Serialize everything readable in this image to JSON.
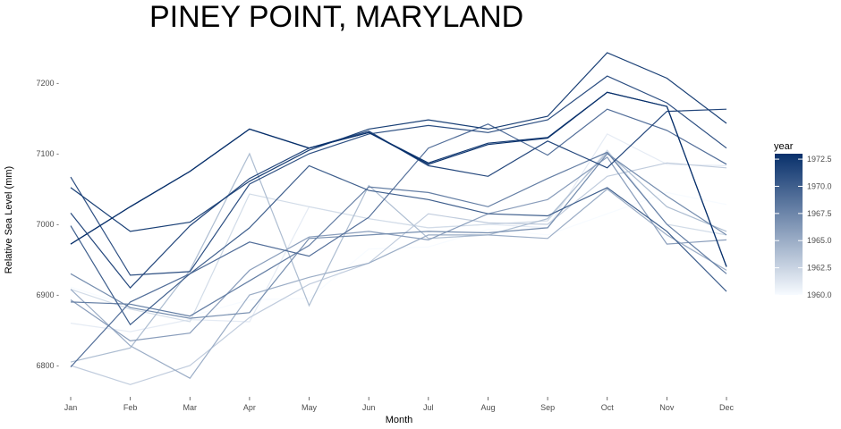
{
  "chart_data": {
    "type": "line",
    "title": "PINEY POINT, MARYLAND",
    "xlabel": "Month",
    "ylabel": "Relative Sea Level (mm)",
    "categories": [
      "Jan",
      "Feb",
      "Mar",
      "Apr",
      "May",
      "Jun",
      "Jul",
      "Aug",
      "Sep",
      "Oct",
      "Nov",
      "Dec"
    ],
    "ylim": [
      6750,
      7250
    ],
    "yticks": [
      6800,
      6900,
      7000,
      7100,
      7200
    ],
    "ytick_labels": [
      "6800 -",
      "6900 -",
      "7000 -",
      "7100 -",
      "7200 -"
    ],
    "grid": false,
    "legend": {
      "title": "year",
      "placement": "right",
      "range": [
        1960,
        1973
      ],
      "ticks": [
        1960,
        1962.5,
        1965,
        1967.5,
        1970,
        1972.5
      ],
      "tick_labels": [
        "1960.0",
        "1962.5",
        "1965.0",
        "1967.5",
        "1970.0",
        "1972.5"
      ],
      "color_low": "#f7fbff",
      "color_high": "#08306b"
    },
    "series": [
      {
        "year": 1960,
        "values": [
          6911,
          6885,
          6870,
          6893,
          6895,
          6965,
          6968,
          6993,
          6985,
          7015,
          7045,
          7028
        ]
      },
      {
        "year": 1961,
        "values": [
          6860,
          6848,
          6865,
          6862,
          7025,
          7008,
          6995,
          7000,
          6995,
          7128,
          7085,
          7083
        ]
      },
      {
        "year": 1962,
        "values": [
          6908,
          6880,
          6862,
          7043,
          7025,
          7008,
          6995,
          7000,
          7005,
          7105,
          7000,
          6985
        ]
      },
      {
        "year": 1963,
        "values": [
          6800,
          6773,
          6800,
          6868,
          6915,
          6945,
          7015,
          7002,
          7000,
          7068,
          7087,
          7080
        ]
      },
      {
        "year": 1964,
        "values": [
          6805,
          6825,
          6935,
          7100,
          6885,
          7055,
          6980,
          6985,
          7008,
          7102,
          7025,
          6990
        ]
      },
      {
        "year": 1965,
        "values": [
          6908,
          6828,
          6782,
          6900,
          6925,
          6945,
          6985,
          6985,
          6980,
          7050,
          6985,
          6935
        ]
      },
      {
        "year": 1966,
        "values": [
          6893,
          6835,
          6846,
          6935,
          6982,
          6990,
          6978,
          7015,
          7035,
          7095,
          6972,
          6978
        ]
      },
      {
        "year": 1967,
        "values": [
          6930,
          6882,
          6867,
          6875,
          6980,
          6985,
          6990,
          6988,
          6995,
          7100,
          7040,
          6985
        ]
      },
      {
        "year": 1968,
        "values": [
          6890,
          6887,
          6870,
          6920,
          6970,
          7053,
          7045,
          7025,
          7065,
          7102,
          7000,
          6930
        ]
      },
      {
        "year": 1969,
        "values": [
          6798,
          6890,
          6930,
          6975,
          6955,
          7010,
          7108,
          7142,
          7098,
          7163,
          7133,
          7085
        ]
      },
      {
        "year": 1970,
        "values": [
          6998,
          6858,
          6930,
          6995,
          7083,
          7048,
          7035,
          7015,
          7012,
          7052,
          6990,
          6905
        ]
      },
      {
        "year": 1971,
        "values": [
          7067,
          6928,
          6933,
          7057,
          7100,
          7128,
          7140,
          7130,
          7148,
          7210,
          7172,
          7108
        ]
      },
      {
        "year": 1971.5,
        "values": [
          7016,
          6910,
          6998,
          7065,
          7108,
          7132,
          7083,
          7068,
          7118,
          7080,
          7160,
          7163
        ]
      },
      {
        "year": 1972,
        "values": [
          7052,
          6990,
          7003,
          7061,
          7105,
          7135,
          7148,
          7135,
          7153,
          7243,
          7207,
          7143
        ]
      },
      {
        "year": 1972.5,
        "values": [
          6972,
          7025,
          7075,
          7135,
          7108,
          7130,
          7087,
          7115,
          7123,
          7187,
          7167,
          6940
        ]
      },
      {
        "year": 1973,
        "values": [
          6972,
          7025,
          7075,
          7135,
          7108,
          7130,
          7085,
          7113,
          7122,
          7187,
          7167,
          6940
        ]
      }
    ]
  }
}
